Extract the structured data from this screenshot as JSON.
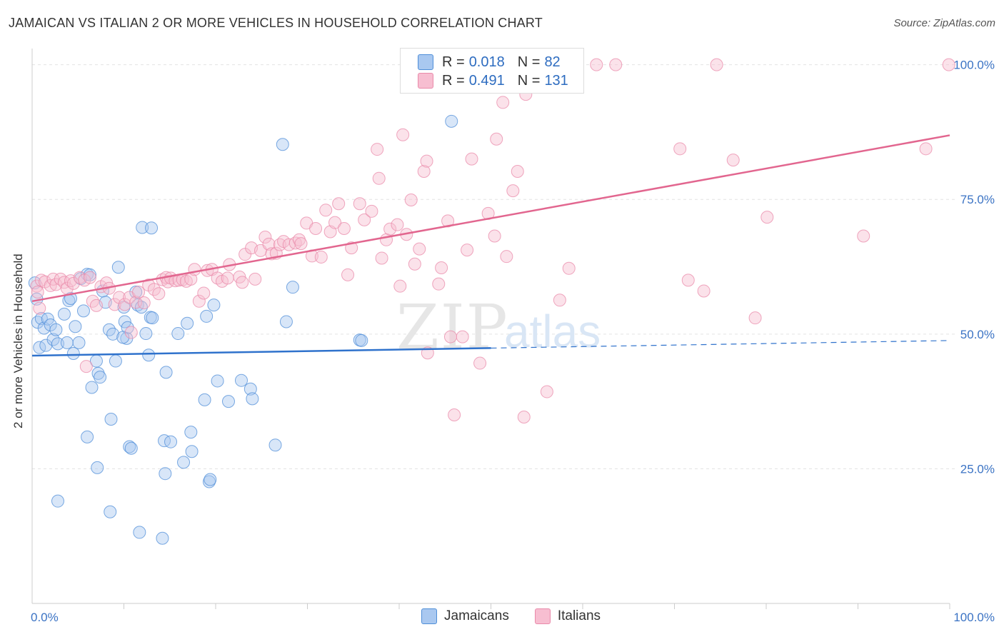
{
  "header": {
    "title": "JAMAICAN VS ITALIAN 2 OR MORE VEHICLES IN HOUSEHOLD CORRELATION CHART",
    "source": "Source: ZipAtlas.com"
  },
  "watermark": {
    "zip": "ZIP",
    "atlas": "atlas"
  },
  "stats": [
    {
      "r_label": "R =",
      "r_value": "0.018",
      "n_label": "N =",
      "n_value": "82"
    },
    {
      "r_label": "R =",
      "r_value": "0.491",
      "n_label": "N =",
      "n_value": "131"
    }
  ],
  "colors": {
    "blue_fill": "#a9c8f0",
    "blue_stroke": "#4f8ed8",
    "blue_line": "#2f72cc",
    "pink_fill": "#f7bed1",
    "pink_stroke": "#e98aaa",
    "pink_line": "#e2668f",
    "axis_text": "#3b73c4",
    "grid": "#e3e3e3"
  },
  "chart_data": {
    "type": "scatter",
    "title": "JAMAICAN VS ITALIAN 2 OR MORE VEHICLES IN HOUSEHOLD CORRELATION CHART",
    "xlabel": "",
    "ylabel": "2 or more Vehicles in Household",
    "xlim": [
      0,
      100
    ],
    "ylim": [
      0,
      103
    ],
    "x_tick_labels": [
      "0.0%",
      "100.0%"
    ],
    "y_ticks": [
      25,
      50,
      75,
      100
    ],
    "y_tick_labels": [
      "25.0%",
      "50.0%",
      "75.0%",
      "100.0%"
    ],
    "grid": true,
    "legend": "bottom-center",
    "series": [
      {
        "name": "Jamaicans",
        "r": 0.018,
        "n": 82,
        "trend": {
          "x": [
            0,
            100
          ],
          "y": [
            46.0,
            48.8
          ],
          "solid_until": 50
        },
        "points": [
          [
            0.3,
            59.5
          ],
          [
            0.5,
            56.5
          ],
          [
            0.6,
            52.2
          ],
          [
            0.8,
            47.5
          ],
          [
            1.0,
            52.9
          ],
          [
            1.3,
            51.1
          ],
          [
            1.5,
            47.9
          ],
          [
            1.7,
            52.8
          ],
          [
            2.0,
            51.7
          ],
          [
            2.3,
            49.0
          ],
          [
            2.6,
            50.8
          ],
          [
            2.8,
            48.2
          ],
          [
            3.5,
            53.7
          ],
          [
            3.8,
            48.4
          ],
          [
            4.0,
            56.2
          ],
          [
            4.2,
            56.6
          ],
          [
            4.5,
            46.4
          ],
          [
            4.7,
            51.4
          ],
          [
            5.1,
            48.4
          ],
          [
            5.3,
            60.3
          ],
          [
            5.6,
            54.3
          ],
          [
            6.0,
            61.1
          ],
          [
            6.3,
            61.0
          ],
          [
            6.0,
            30.9
          ],
          [
            6.5,
            40.1
          ],
          [
            7.0,
            45.0
          ],
          [
            7.2,
            42.7
          ],
          [
            7.4,
            42.0
          ],
          [
            7.1,
            25.2
          ],
          [
            7.7,
            58.0
          ],
          [
            8.0,
            55.9
          ],
          [
            8.4,
            50.8
          ],
          [
            8.5,
            17.0
          ],
          [
            8.6,
            34.2
          ],
          [
            8.8,
            50.0
          ],
          [
            9.1,
            45.0
          ],
          [
            9.4,
            62.4
          ],
          [
            10.0,
            55.0
          ],
          [
            10.1,
            52.3
          ],
          [
            10.3,
            49.2
          ],
          [
            10.4,
            51.2
          ],
          [
            10.6,
            29.1
          ],
          [
            10.8,
            28.8
          ],
          [
            11.3,
            57.8
          ],
          [
            11.5,
            55.4
          ],
          [
            11.7,
            13.2
          ],
          [
            11.9,
            55.0
          ],
          [
            12.0,
            69.8
          ],
          [
            12.4,
            50.1
          ],
          [
            12.7,
            46.1
          ],
          [
            12.9,
            53.1
          ],
          [
            13.0,
            69.7
          ],
          [
            14.4,
            30.2
          ],
          [
            14.5,
            24.1
          ],
          [
            14.6,
            42.9
          ],
          [
            15.1,
            30.0
          ],
          [
            15.9,
            50.1
          ],
          [
            16.5,
            26.2
          ],
          [
            16.9,
            52.0
          ],
          [
            17.3,
            31.8
          ],
          [
            17.4,
            28.2
          ],
          [
            18.8,
            37.8
          ],
          [
            19.0,
            53.3
          ],
          [
            19.3,
            22.6
          ],
          [
            19.4,
            23.0
          ],
          [
            19.8,
            55.4
          ],
          [
            20.2,
            41.3
          ],
          [
            21.4,
            37.5
          ],
          [
            22.8,
            41.4
          ],
          [
            23.8,
            39.8
          ],
          [
            24.0,
            38.0
          ],
          [
            26.5,
            29.4
          ],
          [
            27.3,
            85.2
          ],
          [
            27.7,
            52.3
          ],
          [
            28.4,
            58.7
          ],
          [
            35.7,
            48.9
          ],
          [
            35.9,
            48.8
          ],
          [
            45.7,
            89.5
          ],
          [
            2.8,
            19.0
          ],
          [
            14.2,
            12.1
          ],
          [
            9.9,
            49.4
          ],
          [
            13.1,
            53.0
          ]
        ]
      },
      {
        "name": "Italians",
        "r": 0.491,
        "n": 131,
        "trend": {
          "x": [
            0,
            100
          ],
          "y": [
            56.1,
            86.9
          ],
          "solid_until": 100
        },
        "points": [
          [
            0.5,
            58.9
          ],
          [
            0.6,
            57.8
          ],
          [
            0.8,
            54.8
          ],
          [
            1.0,
            60.0
          ],
          [
            1.4,
            59.7
          ],
          [
            2.0,
            59.0
          ],
          [
            2.3,
            60.2
          ],
          [
            2.6,
            59.2
          ],
          [
            3.1,
            60.2
          ],
          [
            3.5,
            59.6
          ],
          [
            3.8,
            58.5
          ],
          [
            4.2,
            59.9
          ],
          [
            4.5,
            59.4
          ],
          [
            5.2,
            60.5
          ],
          [
            5.7,
            60.0
          ],
          [
            5.9,
            44.0
          ],
          [
            6.3,
            60.5
          ],
          [
            6.6,
            56.1
          ],
          [
            7.0,
            55.3
          ],
          [
            7.5,
            58.8
          ],
          [
            8.1,
            59.5
          ],
          [
            8.4,
            58.5
          ],
          [
            9.0,
            55.5
          ],
          [
            9.5,
            56.8
          ],
          [
            10.1,
            55.5
          ],
          [
            10.6,
            56.8
          ],
          [
            10.8,
            50.3
          ],
          [
            11.3,
            55.9
          ],
          [
            11.6,
            57.8
          ],
          [
            12.2,
            55.8
          ],
          [
            12.7,
            59.1
          ],
          [
            13.3,
            58.3
          ],
          [
            13.8,
            57.5
          ],
          [
            14.2,
            60.1
          ],
          [
            14.6,
            60.5
          ],
          [
            14.8,
            59.7
          ],
          [
            15.1,
            60.4
          ],
          [
            15.6,
            59.9
          ],
          [
            16.0,
            60.0
          ],
          [
            16.4,
            60.1
          ],
          [
            16.8,
            59.8
          ],
          [
            17.3,
            60.2
          ],
          [
            17.7,
            62.0
          ],
          [
            18.2,
            56.1
          ],
          [
            18.7,
            57.6
          ],
          [
            19.1,
            61.8
          ],
          [
            19.6,
            62.0
          ],
          [
            20.2,
            60.4
          ],
          [
            20.7,
            59.8
          ],
          [
            21.3,
            60.4
          ],
          [
            21.5,
            62.9
          ],
          [
            22.6,
            60.6
          ],
          [
            22.9,
            59.6
          ],
          [
            23.2,
            64.8
          ],
          [
            23.9,
            66.0
          ],
          [
            24.3,
            60.2
          ],
          [
            24.9,
            65.5
          ],
          [
            25.4,
            68.0
          ],
          [
            25.8,
            66.7
          ],
          [
            26.1,
            64.9
          ],
          [
            26.6,
            65.0
          ],
          [
            27.0,
            66.6
          ],
          [
            27.4,
            67.2
          ],
          [
            28.0,
            66.6
          ],
          [
            28.7,
            66.9
          ],
          [
            29.1,
            67.5
          ],
          [
            29.3,
            66.8
          ],
          [
            29.9,
            70.6
          ],
          [
            30.5,
            64.5
          ],
          [
            30.9,
            69.6
          ],
          [
            31.5,
            64.3
          ],
          [
            32.0,
            73.0
          ],
          [
            32.5,
            69.0
          ],
          [
            33.0,
            70.7
          ],
          [
            33.4,
            74.2
          ],
          [
            34.0,
            69.6
          ],
          [
            34.4,
            61.0
          ],
          [
            34.8,
            66.0
          ],
          [
            35.7,
            74.2
          ],
          [
            36.2,
            71.2
          ],
          [
            37.0,
            72.8
          ],
          [
            37.6,
            84.3
          ],
          [
            37.8,
            78.9
          ],
          [
            38.1,
            64.1
          ],
          [
            38.6,
            67.5
          ],
          [
            39.0,
            69.5
          ],
          [
            39.8,
            70.3
          ],
          [
            40.1,
            58.9
          ],
          [
            40.4,
            87.0
          ],
          [
            40.8,
            68.5
          ],
          [
            41.3,
            74.9
          ],
          [
            41.7,
            63.0
          ],
          [
            42.2,
            65.8
          ],
          [
            42.7,
            80.2
          ],
          [
            43.0,
            82.1
          ],
          [
            43.1,
            46.5
          ],
          [
            44.3,
            59.3
          ],
          [
            44.6,
            62.3
          ],
          [
            45.3,
            71.0
          ],
          [
            45.6,
            49.5
          ],
          [
            46.0,
            35.0
          ],
          [
            46.9,
            49.5
          ],
          [
            47.4,
            65.6
          ],
          [
            47.9,
            82.5
          ],
          [
            48.8,
            44.6
          ],
          [
            49.7,
            72.4
          ],
          [
            50.4,
            68.2
          ],
          [
            50.6,
            86.2
          ],
          [
            50.9,
            100.0
          ],
          [
            51.3,
            93.0
          ],
          [
            51.7,
            64.4
          ],
          [
            52.4,
            76.6
          ],
          [
            52.9,
            80.2
          ],
          [
            53.6,
            34.6
          ],
          [
            53.8,
            94.5
          ],
          [
            56.1,
            39.3
          ],
          [
            57.5,
            56.3
          ],
          [
            58.5,
            62.2
          ],
          [
            61.5,
            100.0
          ],
          [
            63.6,
            100.0
          ],
          [
            70.6,
            84.4
          ],
          [
            71.5,
            60.0
          ],
          [
            73.2,
            58.0
          ],
          [
            74.6,
            100.0
          ],
          [
            76.4,
            82.3
          ],
          [
            78.8,
            53.0
          ],
          [
            80.1,
            71.7
          ],
          [
            90.6,
            68.2
          ],
          [
            97.4,
            84.4
          ],
          [
            99.9,
            100.0
          ]
        ]
      }
    ]
  }
}
